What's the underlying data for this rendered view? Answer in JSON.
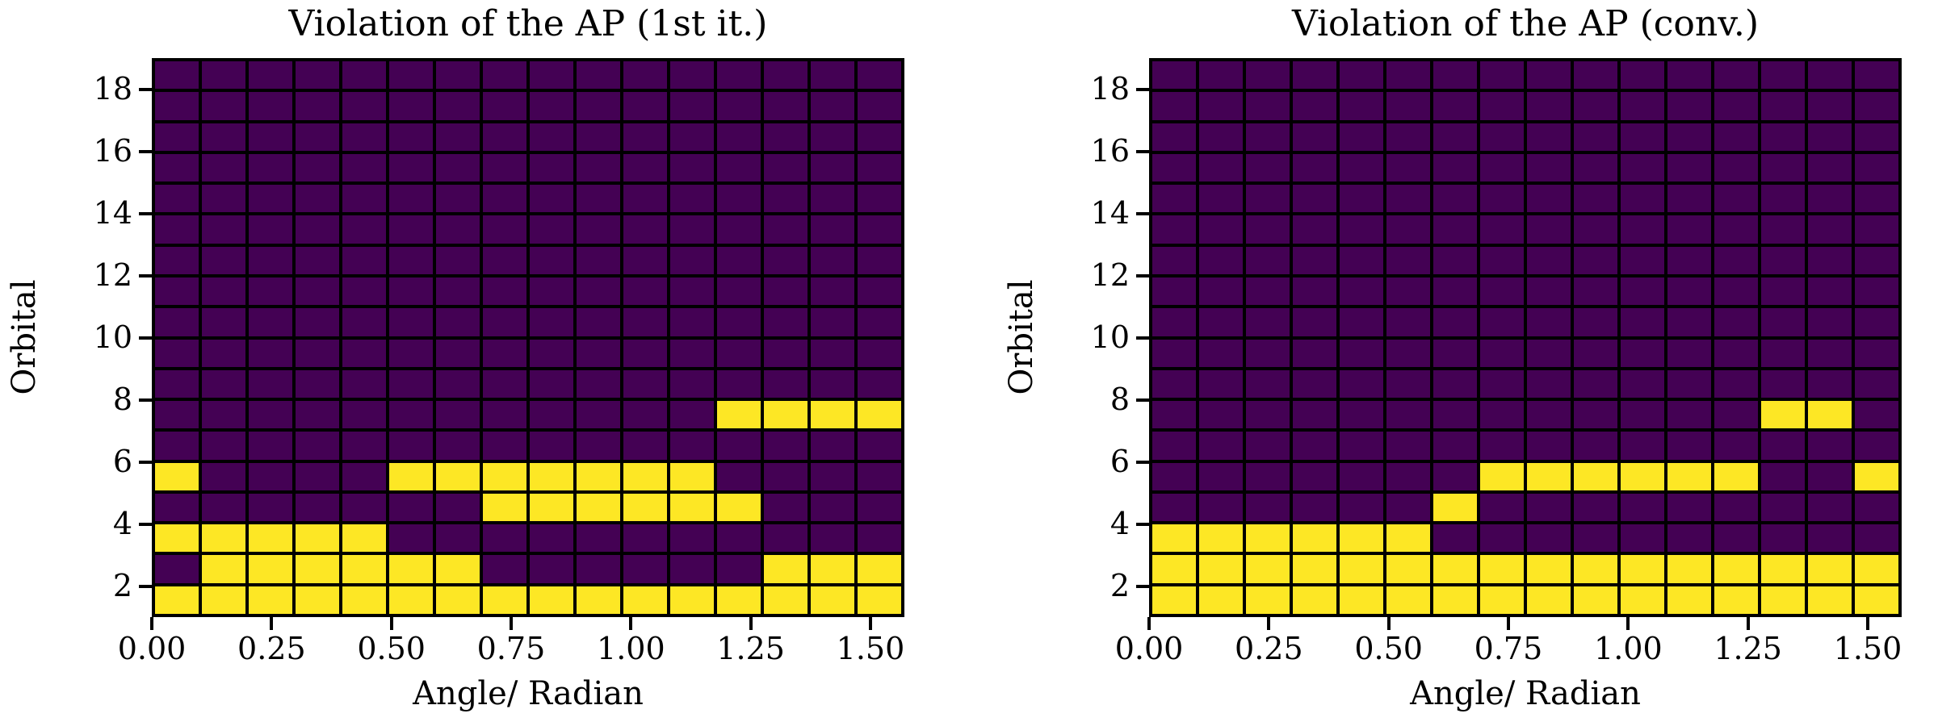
{
  "colors": {
    "violation_cell": "#fde725",
    "no_violation_cell": "#440154",
    "grid_line": "#000000",
    "text": "#000000",
    "background": "#ffffff"
  },
  "chart_data": [
    {
      "type": "heatmap",
      "title": "Violation of the AP (1st it.)",
      "xlabel": "Angle/ Radian",
      "ylabel": "Orbital",
      "x_range": [
        0,
        1.5708
      ],
      "y_range": [
        1,
        19
      ],
      "n_cols": 16,
      "n_rows": 18,
      "grid": "on",
      "x_ticks": [
        {
          "value": 0.0,
          "label": "0.00"
        },
        {
          "value": 0.25,
          "label": "0.25"
        },
        {
          "value": 0.5,
          "label": "0.50"
        },
        {
          "value": 0.75,
          "label": "0.75"
        },
        {
          "value": 1.0,
          "label": "1.00"
        },
        {
          "value": 1.25,
          "label": "1.25"
        },
        {
          "value": 1.5,
          "label": "1.50"
        }
      ],
      "y_ticks": [
        {
          "value": 2,
          "label": "2"
        },
        {
          "value": 4,
          "label": "4"
        },
        {
          "value": 6,
          "label": "6"
        },
        {
          "value": 8,
          "label": "8"
        },
        {
          "value": 10,
          "label": "10"
        },
        {
          "value": 12,
          "label": "12"
        },
        {
          "value": 14,
          "label": "14"
        },
        {
          "value": 16,
          "label": "16"
        },
        {
          "value": 18,
          "label": "18"
        }
      ],
      "row_order": "bottom-to-top, orbital 1 to 18; 1 = violation (yellow), 0 = none (purple)",
      "rows_bottom_to_top": [
        [
          1,
          1,
          1,
          1,
          1,
          1,
          1,
          1,
          1,
          1,
          1,
          1,
          1,
          1,
          1,
          1
        ],
        [
          0,
          1,
          1,
          1,
          1,
          1,
          1,
          0,
          0,
          0,
          0,
          0,
          0,
          1,
          1,
          1
        ],
        [
          1,
          1,
          1,
          1,
          1,
          0,
          0,
          0,
          0,
          0,
          0,
          0,
          0,
          0,
          0,
          0
        ],
        [
          0,
          0,
          0,
          0,
          0,
          0,
          0,
          1,
          1,
          1,
          1,
          1,
          1,
          0,
          0,
          0
        ],
        [
          1,
          0,
          0,
          0,
          0,
          1,
          1,
          1,
          1,
          1,
          1,
          1,
          0,
          0,
          0,
          0
        ],
        [
          0,
          0,
          0,
          0,
          0,
          0,
          0,
          0,
          0,
          0,
          0,
          0,
          0,
          0,
          0,
          0
        ],
        [
          0,
          0,
          0,
          0,
          0,
          0,
          0,
          0,
          0,
          0,
          0,
          0,
          1,
          1,
          1,
          1
        ],
        [
          0,
          0,
          0,
          0,
          0,
          0,
          0,
          0,
          0,
          0,
          0,
          0,
          0,
          0,
          0,
          0
        ],
        [
          0,
          0,
          0,
          0,
          0,
          0,
          0,
          0,
          0,
          0,
          0,
          0,
          0,
          0,
          0,
          0
        ],
        [
          0,
          0,
          0,
          0,
          0,
          0,
          0,
          0,
          0,
          0,
          0,
          0,
          0,
          0,
          0,
          0
        ],
        [
          0,
          0,
          0,
          0,
          0,
          0,
          0,
          0,
          0,
          0,
          0,
          0,
          0,
          0,
          0,
          0
        ],
        [
          0,
          0,
          0,
          0,
          0,
          0,
          0,
          0,
          0,
          0,
          0,
          0,
          0,
          0,
          0,
          0
        ],
        [
          0,
          0,
          0,
          0,
          0,
          0,
          0,
          0,
          0,
          0,
          0,
          0,
          0,
          0,
          0,
          0
        ],
        [
          0,
          0,
          0,
          0,
          0,
          0,
          0,
          0,
          0,
          0,
          0,
          0,
          0,
          0,
          0,
          0
        ],
        [
          0,
          0,
          0,
          0,
          0,
          0,
          0,
          0,
          0,
          0,
          0,
          0,
          0,
          0,
          0,
          0
        ],
        [
          0,
          0,
          0,
          0,
          0,
          0,
          0,
          0,
          0,
          0,
          0,
          0,
          0,
          0,
          0,
          0
        ],
        [
          0,
          0,
          0,
          0,
          0,
          0,
          0,
          0,
          0,
          0,
          0,
          0,
          0,
          0,
          0,
          0
        ],
        [
          0,
          0,
          0,
          0,
          0,
          0,
          0,
          0,
          0,
          0,
          0,
          0,
          0,
          0,
          0,
          0
        ]
      ]
    },
    {
      "type": "heatmap",
      "title": "Violation of the AP (conv.)",
      "xlabel": "Angle/ Radian",
      "ylabel": "Orbital",
      "x_range": [
        0,
        1.5708
      ],
      "y_range": [
        1,
        19
      ],
      "n_cols": 16,
      "n_rows": 18,
      "grid": "on",
      "x_ticks": [
        {
          "value": 0.0,
          "label": "0.00"
        },
        {
          "value": 0.25,
          "label": "0.25"
        },
        {
          "value": 0.5,
          "label": "0.50"
        },
        {
          "value": 0.75,
          "label": "0.75"
        },
        {
          "value": 1.0,
          "label": "1.00"
        },
        {
          "value": 1.25,
          "label": "1.25"
        },
        {
          "value": 1.5,
          "label": "1.50"
        }
      ],
      "y_ticks": [
        {
          "value": 2,
          "label": "2"
        },
        {
          "value": 4,
          "label": "4"
        },
        {
          "value": 6,
          "label": "6"
        },
        {
          "value": 8,
          "label": "8"
        },
        {
          "value": 10,
          "label": "10"
        },
        {
          "value": 12,
          "label": "12"
        },
        {
          "value": 14,
          "label": "14"
        },
        {
          "value": 16,
          "label": "16"
        },
        {
          "value": 18,
          "label": "18"
        }
      ],
      "row_order": "bottom-to-top, orbital 1 to 18; 1 = violation (yellow), 0 = none (purple)",
      "rows_bottom_to_top": [
        [
          1,
          1,
          1,
          1,
          1,
          1,
          1,
          1,
          1,
          1,
          1,
          1,
          1,
          1,
          1,
          1
        ],
        [
          1,
          1,
          1,
          1,
          1,
          1,
          1,
          1,
          1,
          1,
          1,
          1,
          1,
          1,
          1,
          1
        ],
        [
          1,
          1,
          1,
          1,
          1,
          1,
          0,
          0,
          0,
          0,
          0,
          0,
          0,
          0,
          0,
          0
        ],
        [
          0,
          0,
          0,
          0,
          0,
          0,
          1,
          0,
          0,
          0,
          0,
          0,
          0,
          0,
          0,
          0
        ],
        [
          0,
          0,
          0,
          0,
          0,
          0,
          0,
          1,
          1,
          1,
          1,
          1,
          1,
          0,
          0,
          1
        ],
        [
          0,
          0,
          0,
          0,
          0,
          0,
          0,
          0,
          0,
          0,
          0,
          0,
          0,
          0,
          0,
          0
        ],
        [
          0,
          0,
          0,
          0,
          0,
          0,
          0,
          0,
          0,
          0,
          0,
          0,
          0,
          1,
          1,
          0
        ],
        [
          0,
          0,
          0,
          0,
          0,
          0,
          0,
          0,
          0,
          0,
          0,
          0,
          0,
          0,
          0,
          0
        ],
        [
          0,
          0,
          0,
          0,
          0,
          0,
          0,
          0,
          0,
          0,
          0,
          0,
          0,
          0,
          0,
          0
        ],
        [
          0,
          0,
          0,
          0,
          0,
          0,
          0,
          0,
          0,
          0,
          0,
          0,
          0,
          0,
          0,
          0
        ],
        [
          0,
          0,
          0,
          0,
          0,
          0,
          0,
          0,
          0,
          0,
          0,
          0,
          0,
          0,
          0,
          0
        ],
        [
          0,
          0,
          0,
          0,
          0,
          0,
          0,
          0,
          0,
          0,
          0,
          0,
          0,
          0,
          0,
          0
        ],
        [
          0,
          0,
          0,
          0,
          0,
          0,
          0,
          0,
          0,
          0,
          0,
          0,
          0,
          0,
          0,
          0
        ],
        [
          0,
          0,
          0,
          0,
          0,
          0,
          0,
          0,
          0,
          0,
          0,
          0,
          0,
          0,
          0,
          0
        ],
        [
          0,
          0,
          0,
          0,
          0,
          0,
          0,
          0,
          0,
          0,
          0,
          0,
          0,
          0,
          0,
          0
        ],
        [
          0,
          0,
          0,
          0,
          0,
          0,
          0,
          0,
          0,
          0,
          0,
          0,
          0,
          0,
          0,
          0
        ],
        [
          0,
          0,
          0,
          0,
          0,
          0,
          0,
          0,
          0,
          0,
          0,
          0,
          0,
          0,
          0,
          0
        ],
        [
          0,
          0,
          0,
          0,
          0,
          0,
          0,
          0,
          0,
          0,
          0,
          0,
          0,
          0,
          0,
          0
        ]
      ]
    }
  ]
}
